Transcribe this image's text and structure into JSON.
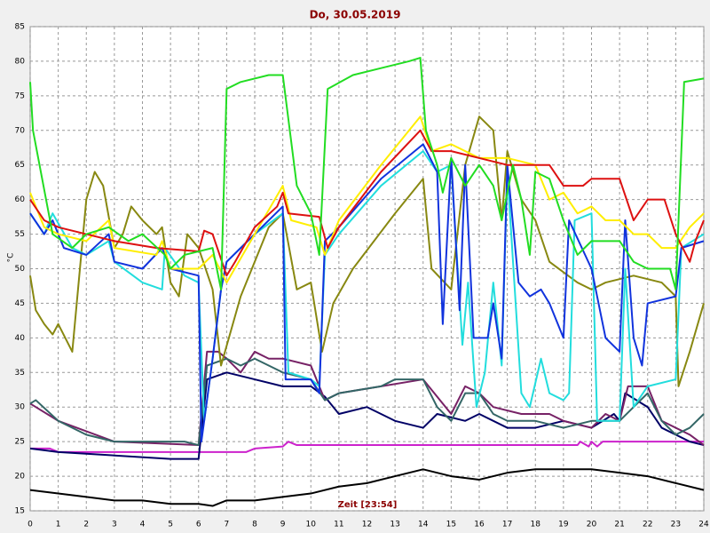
{
  "chart_data": {
    "type": "line",
    "title": "Do, 30.05.2019",
    "xlabel": "Zeit [23:54]",
    "ylabel": "°C",
    "xlim": [
      0,
      24
    ],
    "xticks": [
      0,
      1,
      2,
      3,
      4,
      5,
      6,
      7,
      8,
      9,
      10,
      11,
      12,
      13,
      14,
      15,
      16,
      17,
      18,
      19,
      20,
      21,
      22,
      23,
      24
    ],
    "ylim": [
      15,
      85
    ],
    "yticks": [
      15,
      20,
      25,
      30,
      35,
      40,
      45,
      50,
      55,
      60,
      65,
      70,
      75,
      80,
      85
    ],
    "grid": true,
    "series": [
      {
        "color": "#000000",
        "x": [
          0,
          1,
          2,
          3,
          4,
          5,
          6,
          6.5,
          7,
          8,
          9,
          10,
          11,
          12,
          13,
          14,
          15,
          16,
          17,
          18,
          19,
          20,
          21,
          22,
          23,
          24
        ],
        "values": [
          18,
          17.5,
          17,
          16.5,
          16.5,
          16,
          16,
          15.7,
          16.5,
          16.5,
          17,
          17.5,
          18.5,
          19,
          20,
          21,
          20,
          19.5,
          20.5,
          21,
          21,
          21,
          20.5,
          20,
          19,
          18
        ]
      },
      {
        "color": "#cc22cc",
        "x": [
          0,
          0.7,
          1,
          7.7,
          8,
          9,
          9.2,
          9.5,
          19.5,
          19.6,
          19.9,
          20,
          20.2,
          20.4,
          24
        ],
        "values": [
          24,
          24,
          23.5,
          23.5,
          24,
          24.3,
          25,
          24.5,
          24.5,
          25,
          24.3,
          25,
          24.3,
          25,
          25
        ]
      },
      {
        "color": "#000066",
        "x": [
          0,
          1,
          3,
          5,
          6,
          6.3,
          7,
          8,
          9,
          10,
          10.5,
          11,
          12,
          13,
          14,
          14.5,
          15.5,
          16,
          17,
          18,
          19,
          20,
          20.8,
          21,
          21.2,
          22,
          22.5,
          23,
          23.5,
          24
        ],
        "values": [
          24,
          23.5,
          23,
          22.5,
          22.5,
          34,
          35,
          34,
          33,
          33,
          31.5,
          29,
          30,
          28,
          27,
          29,
          28,
          29,
          27,
          27,
          28,
          27,
          29,
          28,
          32,
          30,
          27,
          26,
          25,
          24.5
        ]
      },
      {
        "color": "#772266",
        "x": [
          0,
          1,
          3,
          6,
          6.3,
          6.7,
          7,
          7.5,
          8,
          8.5,
          9,
          10,
          10.5,
          11,
          12.5,
          14,
          15,
          15.5,
          16,
          16.5,
          17.5,
          18.5,
          19,
          20,
          20.5,
          21,
          21.3,
          22,
          22.5,
          23.5,
          24
        ],
        "values": [
          30.5,
          28,
          25,
          24.5,
          38,
          38,
          37,
          35,
          38,
          37,
          37,
          36,
          31,
          32,
          33,
          34,
          29,
          33,
          32,
          30,
          29,
          29,
          28,
          27,
          29,
          28,
          33,
          33,
          28,
          26,
          24.5
        ]
      },
      {
        "color": "#336666",
        "x": [
          0,
          0.2,
          1,
          2,
          3,
          4,
          5.5,
          6,
          6.3,
          7,
          7.5,
          8,
          8.5,
          9,
          10,
          10.5,
          11,
          12.5,
          13,
          14,
          14.5,
          15,
          15.5,
          16,
          16.5,
          17,
          18,
          19,
          20,
          21,
          21.5,
          22,
          22.5,
          23,
          23.5,
          24
        ],
        "values": [
          30.5,
          31,
          28,
          26,
          25,
          25,
          25,
          24.5,
          36,
          37,
          36,
          37,
          36,
          35,
          34,
          31,
          32,
          33,
          34,
          34,
          30,
          28,
          32,
          32,
          29,
          28,
          28,
          27,
          28,
          28,
          30,
          32,
          28,
          26,
          27,
          29
        ]
      },
      {
        "color": "#888811",
        "x": [
          0,
          0.2,
          0.5,
          0.8,
          1,
          1.5,
          2,
          2.3,
          2.6,
          3,
          3.3,
          3.6,
          4,
          4.5,
          4.7,
          5,
          5.3,
          5.6,
          6,
          6.5,
          6.8,
          7.5,
          8.5,
          9,
          9.5,
          10,
          10.4,
          10.8,
          11.5,
          13,
          14,
          14.3,
          15,
          15.5,
          16,
          16.5,
          16.8,
          17,
          17.5,
          18,
          18.5,
          19.5,
          20,
          20.5,
          21.5,
          22.5,
          23,
          23.1,
          23.5,
          24
        ],
        "values": [
          49,
          44,
          42,
          40.5,
          42,
          38,
          60,
          64,
          62,
          53,
          55,
          59,
          57,
          55,
          56,
          48,
          46,
          55,
          53,
          47,
          36,
          46,
          56,
          58,
          47,
          48,
          38,
          45,
          50,
          58,
          63,
          50,
          47,
          65,
          72,
          70,
          57,
          67,
          60,
          57,
          51,
          48,
          47,
          48,
          49,
          48,
          46,
          33,
          38,
          45
        ]
      },
      {
        "color": "#22dddd",
        "x": [
          0,
          0.5,
          0.8,
          1.5,
          2,
          2.8,
          3,
          4,
          4.7,
          4.8,
          5.5,
          6,
          6.2,
          6.5,
          6.8,
          7,
          8,
          9,
          9.2,
          10,
          10.3,
          10.5,
          11,
          12.5,
          14,
          14.5,
          15,
          15.4,
          15.6,
          15.9,
          16.2,
          16.5,
          16.8,
          17,
          17.5,
          17.8,
          18.2,
          18.5,
          19,
          19.2,
          19.4,
          20,
          20.2,
          21,
          21.2,
          21.5,
          22,
          23,
          23.2,
          24
        ],
        "values": [
          58,
          55,
          58,
          53,
          52,
          54,
          51,
          48,
          47,
          53,
          49,
          48,
          28,
          37,
          47,
          51,
          55,
          58,
          35,
          34,
          33,
          52,
          55,
          62,
          67,
          64,
          65,
          39,
          48,
          30,
          35,
          48,
          36,
          64,
          32,
          30,
          37,
          32,
          31,
          32,
          57,
          58,
          28,
          28,
          50,
          30,
          33,
          34,
          53,
          55
        ]
      },
      {
        "color": "#1133dd",
        "x": [
          0,
          0.5,
          0.8,
          1.2,
          2,
          2.8,
          3,
          4,
          4.7,
          5,
          6,
          6.1,
          6.5,
          6.8,
          7,
          8,
          9,
          9.1,
          10,
          10.3,
          10.5,
          11,
          12.5,
          14,
          14.5,
          14.7,
          15,
          15.3,
          15.5,
          15.8,
          16.3,
          16.5,
          16.8,
          17,
          17.4,
          17.8,
          18.2,
          18.5,
          19,
          19.2,
          20,
          20.5,
          21,
          21.2,
          21.5,
          21.8,
          22,
          23,
          23.2,
          24
        ],
        "values": [
          58,
          55,
          57,
          53,
          52,
          55,
          51,
          50,
          53,
          50,
          49,
          25,
          37,
          47,
          51,
          55,
          59,
          34,
          34,
          32,
          54,
          56,
          63,
          68,
          64,
          42,
          66,
          44,
          65,
          40,
          40,
          45,
          37,
          65,
          48,
          46,
          47,
          45,
          40,
          57,
          50,
          40,
          38,
          57,
          40,
          36,
          45,
          46,
          53,
          54
        ]
      },
      {
        "color": "#ffee00",
        "x": [
          0,
          0.5,
          1,
          2,
          2.8,
          3,
          4.5,
          4.7,
          5,
          6,
          6.5,
          7,
          8,
          9,
          9.3,
          10.2,
          10.5,
          11,
          12.5,
          13.9,
          14.3,
          15,
          16,
          17,
          18,
          18.5,
          19,
          19.5,
          20,
          20.5,
          21,
          21.5,
          22,
          22.5,
          23,
          23.5,
          24
        ],
        "values": [
          61,
          56,
          55,
          54,
          57,
          53,
          52,
          54,
          50,
          50,
          52,
          48,
          55,
          62,
          57,
          56,
          52,
          57,
          65,
          72,
          67,
          68,
          66,
          66,
          65,
          60,
          61,
          58,
          59,
          57,
          57,
          55,
          55,
          53,
          53,
          56,
          58
        ]
      },
      {
        "color": "#dd1111",
        "x": [
          0,
          0.5,
          1,
          2,
          3,
          4.5,
          6,
          6.2,
          6.5,
          7,
          7.3,
          8,
          8.8,
          9,
          9.2,
          10.3,
          10.6,
          11,
          12.5,
          13.9,
          14.3,
          15,
          16,
          17,
          18.5,
          19,
          19.7,
          20,
          21,
          21.5,
          22,
          22.6,
          23,
          23.5,
          23.7,
          24
        ],
        "values": [
          60,
          57,
          56,
          55,
          54,
          53,
          52.5,
          55.5,
          55,
          49,
          51,
          56,
          59,
          61,
          58,
          57.5,
          53,
          56,
          64,
          70,
          67,
          67,
          66,
          65,
          65,
          62,
          62,
          63,
          63,
          57,
          60,
          60,
          55,
          51,
          54,
          57
        ]
      },
      {
        "color": "#22dd22",
        "x": [
          0,
          0.1,
          0.8,
          1.5,
          2,
          2.8,
          3.5,
          4,
          4.8,
          5,
          5.5,
          6.5,
          6.8,
          7,
          7.5,
          8.5,
          9,
          9.5,
          10,
          10.3,
          10.6,
          11.5,
          12.5,
          13.5,
          13.9,
          14.1,
          14.5,
          14.7,
          15,
          15.5,
          16,
          16.5,
          16.8,
          17.2,
          17.5,
          17.8,
          18,
          18.5,
          19,
          19.5,
          20,
          21,
          21.5,
          22,
          22.8,
          23,
          23.3,
          24
        ],
        "values": [
          77,
          70,
          55,
          53,
          55,
          56,
          54,
          55,
          52,
          50,
          52,
          53,
          47,
          76,
          77,
          78,
          78,
          62,
          58,
          52,
          76,
          78,
          79,
          80,
          80.5,
          70,
          65,
          61,
          66,
          62,
          65,
          62,
          57,
          65,
          60,
          52,
          64,
          63,
          57,
          52,
          54,
          54,
          51,
          50,
          50,
          47,
          77,
          77.5
        ]
      }
    ]
  }
}
